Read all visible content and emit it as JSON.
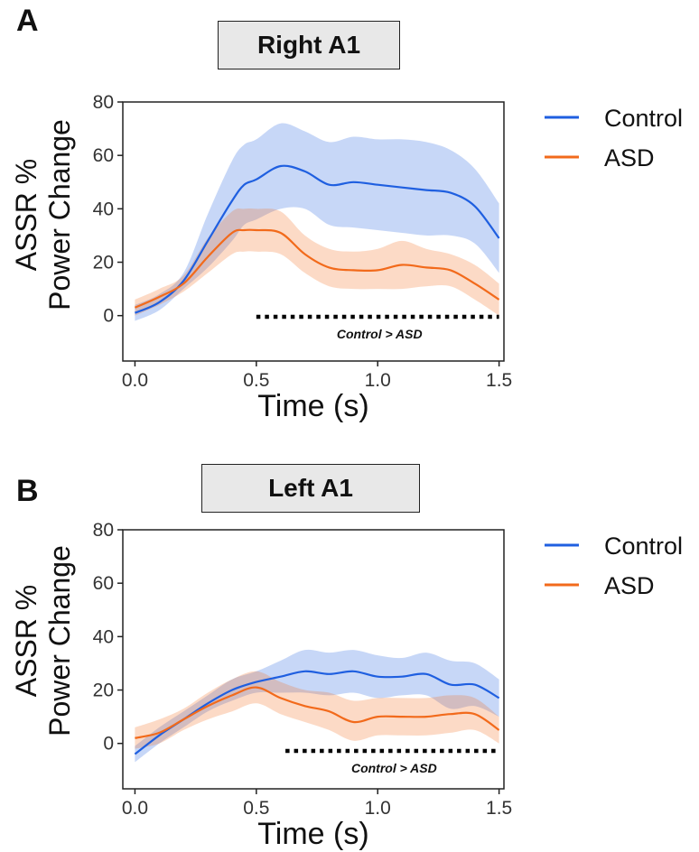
{
  "panels": [
    {
      "letter": "A",
      "title": "Right A1",
      "ylabel_line1": "ASSR %",
      "ylabel_line2": "Power Change",
      "xlabel": "Time (s)",
      "annotation": "Control > ASD",
      "sig_range": [
        0.5,
        1.5
      ]
    },
    {
      "letter": "B",
      "title": "Left A1",
      "ylabel_line1": "ASSR %",
      "ylabel_line2": "Power Change",
      "xlabel": "Time (s)",
      "annotation": "Control > ASD",
      "sig_range": [
        0.62,
        1.5
      ]
    }
  ],
  "legend": [
    {
      "name": "Control",
      "color": "#1f5fe0"
    },
    {
      "name": "ASD",
      "color": "#f26a1b"
    }
  ],
  "chart_data": [
    {
      "type": "line",
      "title": "Right A1",
      "xlabel": "Time (s)",
      "ylabel": "ASSR % Power Change",
      "xlim": [
        -0.05,
        1.52
      ],
      "ylim": [
        -17,
        80
      ],
      "xticks": [
        0.0,
        0.5,
        1.0,
        1.5
      ],
      "yticks": [
        0,
        20,
        40,
        60,
        80
      ],
      "legend_position": "right",
      "x": [
        0.0,
        0.1,
        0.2,
        0.3,
        0.4,
        0.45,
        0.5,
        0.6,
        0.7,
        0.8,
        0.9,
        1.0,
        1.1,
        1.2,
        1.3,
        1.4,
        1.5
      ],
      "series": [
        {
          "name": "Control",
          "color": "#1f5fe0",
          "values": [
            1,
            5,
            13,
            28,
            43,
            49,
            51,
            56,
            54,
            49,
            50,
            49,
            48,
            47,
            46,
            41,
            29
          ],
          "upper": [
            4,
            8,
            16,
            38,
            58,
            64,
            66,
            72,
            69,
            65,
            67,
            66,
            66,
            65,
            62,
            55,
            42
          ],
          "lower": [
            -2,
            2,
            10,
            18,
            28,
            34,
            36,
            40,
            40,
            34,
            33,
            32,
            31,
            30,
            30,
            27,
            16
          ]
        },
        {
          "name": "ASD",
          "color": "#f26a1b",
          "values": [
            3,
            7,
            12,
            22,
            31,
            32,
            32,
            31,
            23,
            18,
            17,
            17,
            19,
            18,
            17,
            12,
            6
          ],
          "upper": [
            6,
            10,
            15,
            29,
            39,
            40,
            40,
            39,
            30,
            25,
            24,
            25,
            28,
            25,
            23,
            19,
            12
          ],
          "lower": [
            0,
            4,
            9,
            16,
            23,
            24,
            24,
            23,
            16,
            11,
            10,
            10,
            10,
            11,
            11,
            6,
            0
          ]
        }
      ]
    },
    {
      "type": "line",
      "title": "Left A1",
      "xlabel": "Time (s)",
      "ylabel": "ASSR % Power Change",
      "xlim": [
        -0.05,
        1.52
      ],
      "ylim": [
        -17,
        80
      ],
      "xticks": [
        0.0,
        0.5,
        1.0,
        1.5
      ],
      "yticks": [
        0,
        20,
        40,
        60,
        80
      ],
      "legend_position": "right",
      "x": [
        0.0,
        0.1,
        0.2,
        0.3,
        0.4,
        0.5,
        0.6,
        0.7,
        0.8,
        0.9,
        1.0,
        1.1,
        1.2,
        1.3,
        1.4,
        1.5
      ],
      "series": [
        {
          "name": "Control",
          "color": "#1f5fe0",
          "values": [
            -4,
            3,
            9,
            15,
            20,
            23,
            25,
            27,
            26,
            27,
            25,
            25,
            26,
            22,
            22,
            17
          ],
          "upper": [
            -1,
            6,
            12,
            18,
            24,
            27,
            31,
            35,
            34,
            35,
            33,
            32,
            34,
            31,
            30,
            24
          ],
          "lower": [
            -7,
            0,
            6,
            12,
            16,
            19,
            19,
            19,
            18,
            19,
            17,
            18,
            18,
            13,
            14,
            10
          ]
        },
        {
          "name": "ASD",
          "color": "#f26a1b",
          "values": [
            2,
            4,
            9,
            14,
            18,
            21,
            17,
            14,
            12,
            8,
            10,
            10,
            10,
            11,
            11,
            5
          ],
          "upper": [
            6,
            9,
            13,
            19,
            24,
            27,
            23,
            20,
            19,
            16,
            17,
            17,
            17,
            18,
            17,
            10
          ],
          "lower": [
            -2,
            0,
            5,
            9,
            12,
            15,
            11,
            8,
            5,
            1,
            3,
            3,
            3,
            4,
            5,
            0
          ]
        }
      ]
    }
  ]
}
